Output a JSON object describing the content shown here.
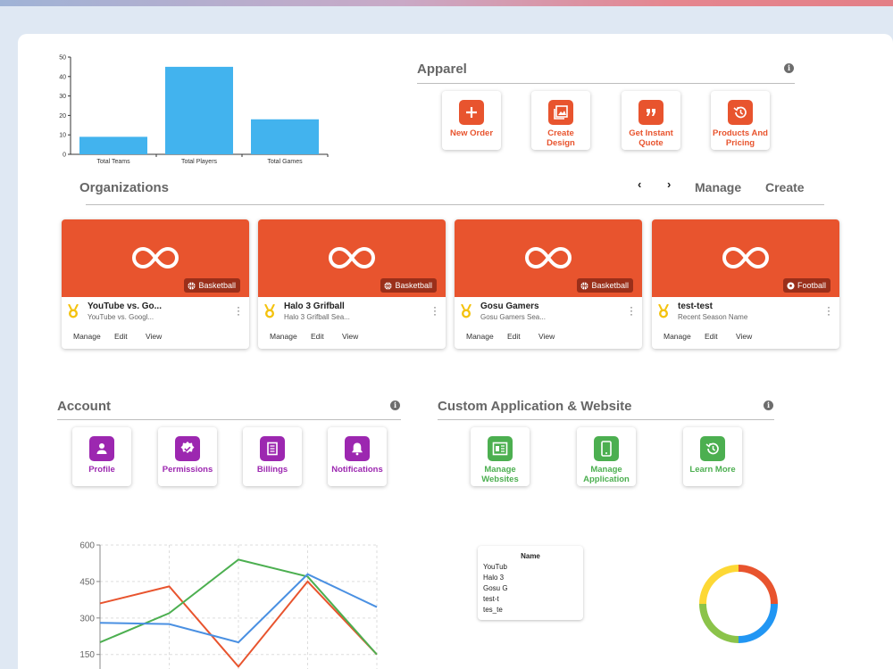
{
  "bar_chart": {
    "chart_data": {
      "type": "bar",
      "categories": [
        "Total Teams",
        "Total Players",
        "Total Games"
      ],
      "values": [
        9,
        45,
        18
      ],
      "ylim": [
        0,
        50
      ],
      "yticks": [
        "0",
        "10",
        "20",
        "30",
        "40",
        "50"
      ],
      "color": "#42b3ee"
    }
  },
  "apparel": {
    "title": "Apparel",
    "info": "i",
    "tiles": [
      {
        "label": "New Order",
        "icon": "plus-icon"
      },
      {
        "label": "Create Design",
        "icon": "image-gallery-icon"
      },
      {
        "label": "Get Instant Quote",
        "icon": "quote-icon"
      },
      {
        "label": "Products And Pricing",
        "icon": "history-icon"
      }
    ]
  },
  "organizations": {
    "title": "Organizations",
    "prev": "‹",
    "next": "›",
    "manage": "Manage",
    "create": "Create",
    "cards": [
      {
        "name": "YouTube vs. Go...",
        "season": "YouTube vs. Googl...",
        "sport": "Basketball"
      },
      {
        "name": "Halo 3 Grifball",
        "season": "Halo 3 Grifball Sea...",
        "sport": "Basketball"
      },
      {
        "name": "Gosu Gamers",
        "season": "Gosu Gamers Sea...",
        "sport": "Basketball"
      },
      {
        "name": "test-test",
        "season": "Recent Season Name",
        "sport": "Football"
      }
    ],
    "actions": [
      "Manage",
      "Edit",
      "View"
    ]
  },
  "account": {
    "title": "Account",
    "info": "i",
    "tiles": [
      {
        "label": "Profile",
        "icon": "person-icon"
      },
      {
        "label": "Permissions",
        "icon": "verified-badge-icon"
      },
      {
        "label": "Billings",
        "icon": "document-icon"
      },
      {
        "label": "Notifications",
        "icon": "bell-icon"
      }
    ]
  },
  "custom_app": {
    "title": "Custom Application & Website",
    "info": "i",
    "tiles": [
      {
        "label": "Manage Websites",
        "icon": "website-icon"
      },
      {
        "label": "Manage Application",
        "icon": "phone-icon"
      },
      {
        "label": "Learn More",
        "icon": "history-icon"
      }
    ]
  },
  "line_chart": {
    "chart_data": {
      "type": "line",
      "x": [
        0,
        1,
        2,
        3,
        4
      ],
      "ylim": [
        50,
        600
      ],
      "yticks": [
        "150",
        "300",
        "450",
        "600"
      ],
      "series": [
        {
          "color": "#e8542e",
          "values": [
            360,
            430,
            100,
            450,
            150
          ]
        },
        {
          "color": "#4caf50",
          "values": [
            200,
            320,
            540,
            470,
            150
          ]
        },
        {
          "color": "#4a90e2",
          "values": [
            280,
            275,
            200,
            480,
            345
          ]
        }
      ]
    }
  },
  "names_table": {
    "header": "Name",
    "rows": [
      "YouTub",
      "Halo 3",
      "Gosu G",
      "test-t",
      "tes_te"
    ]
  },
  "donut_chart": {
    "chart_data": {
      "type": "pie",
      "values": [
        25,
        25,
        25,
        25
      ],
      "colors": [
        "#e8542e",
        "#2196f3",
        "#8bc34a",
        "#fdd835"
      ]
    }
  }
}
